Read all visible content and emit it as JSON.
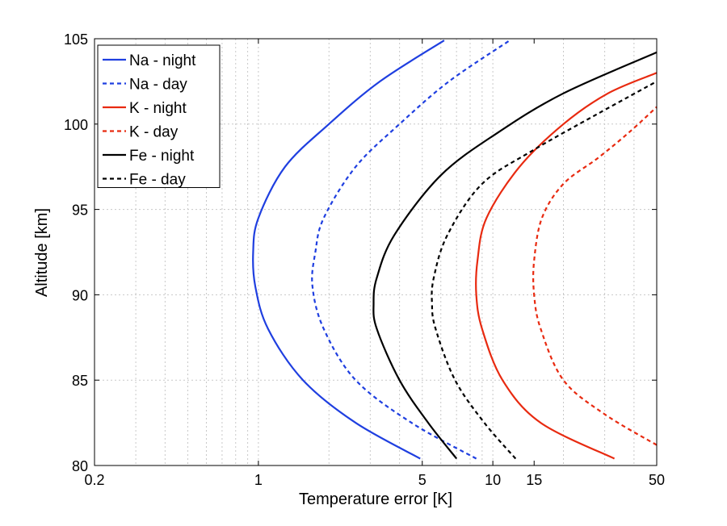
{
  "chart_data": {
    "type": "line",
    "title": "",
    "xlabel": "Temperature error [K]",
    "ylabel": "Altitude [km]",
    "xscale": "log",
    "xlim": [
      0.2,
      50
    ],
    "ylim": [
      80,
      105
    ],
    "xticks": [
      0.2,
      1,
      5,
      10,
      15,
      50
    ],
    "xtick_labels": [
      "0.2",
      "1",
      "5",
      "10",
      "15",
      "50"
    ],
    "yticks": [
      80,
      85,
      90,
      95,
      100,
      105
    ],
    "ytick_labels": [
      "80",
      "85",
      "90",
      "95",
      "100",
      "105"
    ],
    "grid": true,
    "legend_position": "top-left",
    "series": [
      {
        "name": "Na - night",
        "color": "#1f3fe0",
        "dash": "solid",
        "x": [
          4.9,
          2.6,
          1.55,
          1.1,
          0.97,
          0.95,
          1.0,
          1.3,
          2.0,
          3.3,
          6.2
        ],
        "y": [
          80.4,
          82.5,
          85.0,
          88.0,
          90.5,
          92.5,
          94.5,
          97.5,
          100.0,
          102.5,
          104.9
        ]
      },
      {
        "name": "Na - day",
        "color": "#1f3fe0",
        "dash": "dashed",
        "x": [
          8.5,
          4.5,
          2.6,
          1.9,
          1.7,
          1.75,
          1.9,
          2.6,
          4.0,
          6.5,
          11.8
        ],
        "y": [
          80.4,
          82.5,
          85.0,
          88.0,
          90.5,
          92.5,
          94.5,
          97.5,
          100.0,
          102.5,
          104.9
        ]
      },
      {
        "name": "K - night",
        "color": "#e82a10",
        "dash": "solid",
        "x": [
          33,
          16,
          11,
          9,
          8.5,
          8.6,
          9.4,
          13,
          20,
          31,
          50
        ],
        "y": [
          80.4,
          82.5,
          85.0,
          88.0,
          90.0,
          92.0,
          94.5,
          97.5,
          100.0,
          101.8,
          103.0
        ]
      },
      {
        "name": "K - day",
        "color": "#e82a10",
        "dash": "dashed",
        "x": [
          50,
          30,
          20,
          16,
          15,
          15,
          16.2,
          20,
          28,
          38,
          50
        ],
        "y": [
          81.2,
          83.0,
          85.0,
          88.0,
          90.0,
          92.0,
          94.5,
          96.5,
          98.0,
          99.5,
          101.0
        ]
      },
      {
        "name": "Fe  - night",
        "color": "#000000",
        "dash": "solid",
        "x": [
          7.0,
          5.3,
          4.0,
          3.2,
          3.1,
          3.2,
          3.8,
          6.0,
          10.5,
          20,
          50
        ],
        "y": [
          80.4,
          82.5,
          85.0,
          88.0,
          89.5,
          91.0,
          93.5,
          97.0,
          99.5,
          101.8,
          104.2
        ]
      },
      {
        "name": "Fe - day",
        "color": "#000000",
        "dash": "dashed",
        "x": [
          12.5,
          9.2,
          6.9,
          5.7,
          5.5,
          5.6,
          6.4,
          9.0,
          15.0,
          28,
          50
        ],
        "y": [
          80.4,
          82.5,
          85.0,
          88.0,
          89.5,
          91.0,
          93.5,
          96.5,
          98.5,
          100.6,
          102.5
        ]
      }
    ]
  }
}
